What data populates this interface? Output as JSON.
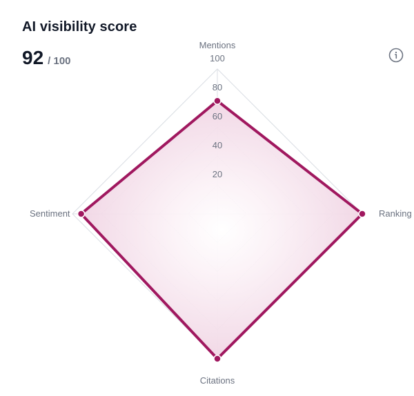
{
  "widget": {
    "title": "AI visibility score",
    "score": "92",
    "score_max": "/ 100",
    "info_icon": "info-circle-icon"
  },
  "colors": {
    "accent": "#a0185f",
    "fill": "#f6e3ee",
    "grid": "#d9dde3",
    "text_muted": "#6b7280"
  },
  "chart_data": {
    "type": "radar",
    "axes": [
      "Mentions",
      "Ranking",
      "Citations",
      "Sentiment"
    ],
    "ticks": [
      "20",
      "40",
      "60",
      "80",
      "100"
    ],
    "range": [
      0,
      100
    ],
    "series": [
      {
        "values": [
          78,
          100,
          100,
          94
        ]
      }
    ],
    "grid": true
  }
}
